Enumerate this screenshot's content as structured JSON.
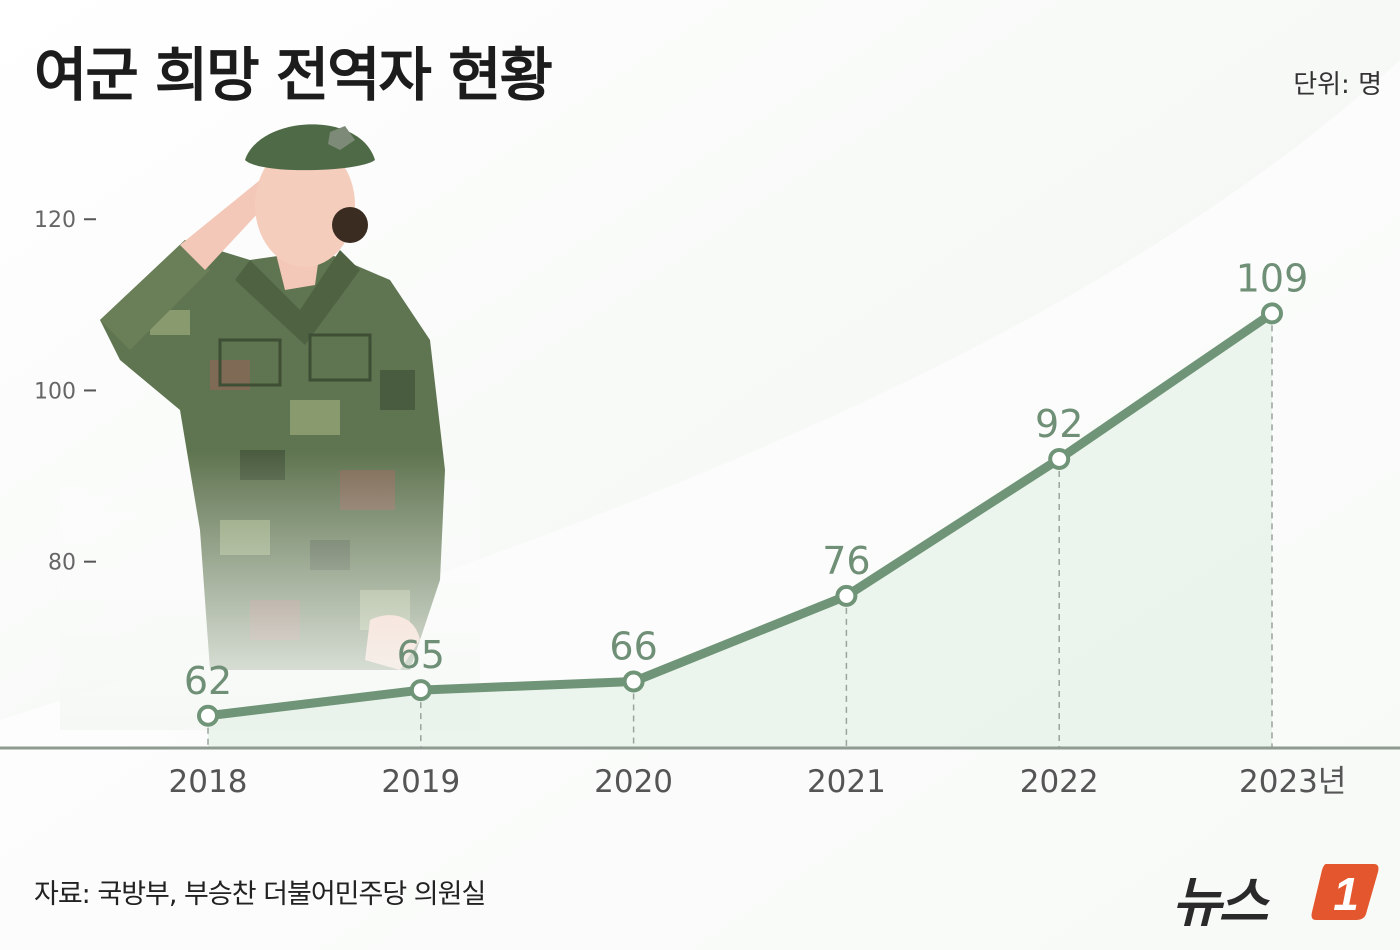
{
  "title": "여군 희망 전역자 현황",
  "unit": "단위: 명",
  "source": "자료: 국방부, 부승찬 더불어민주당 의원실",
  "logo": {
    "text": "뉴스",
    "badge": "1"
  },
  "colors": {
    "line": "#6f9477",
    "accent": "#e4572e",
    "label": "#6f8f76"
  },
  "chart_data": {
    "type": "line",
    "x": [
      "2018",
      "2019",
      "2020",
      "2021",
      "2022",
      "2023년"
    ],
    "values": [
      62,
      65,
      66,
      76,
      92,
      109
    ],
    "yticks": [
      80,
      100,
      120
    ],
    "ylim": [
      58,
      124
    ],
    "grid": false,
    "legend": "none"
  }
}
